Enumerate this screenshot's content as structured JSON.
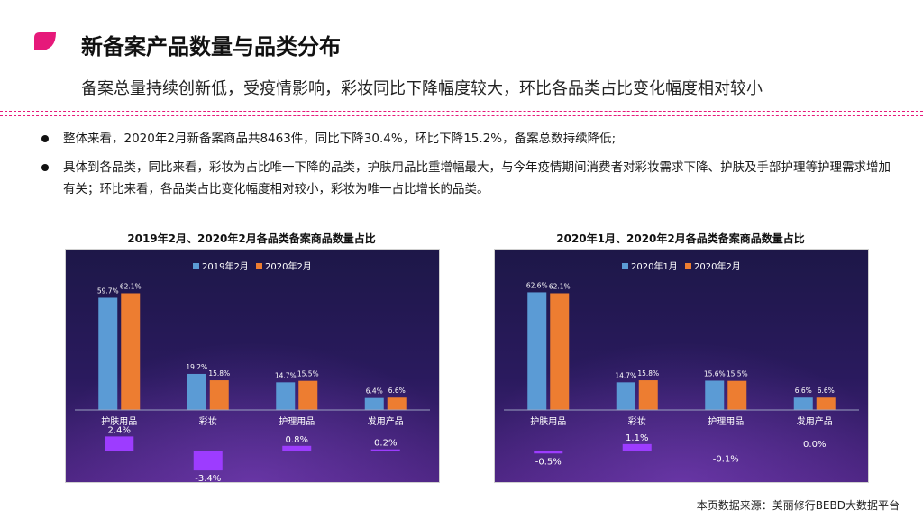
{
  "header": {
    "title": "新备案产品数量与品类分布",
    "subtitle": "备案总量持续创新低，受疫情影响，彩妆同比下降幅度较大，环比各品类占比变化幅度相对较小"
  },
  "bullets": [
    {
      "text": "整体来看，2020年2月新备案商品共8463件，同比下降30.4%，环比下降15.2%，备案总数持续降低;"
    },
    {
      "text": "具体到各品类，同比来看，彩妆为占比唯一下降的品类，护肤用品比重增幅最大，与今年疫情期间消费者对彩妆需求下降、护肤及手部护理等护理需求增加有关；环比来看，各品类占比变化幅度相对较小，彩妆为唯一占比增长的品类。"
    }
  ],
  "colors": {
    "accent": "#e6197a",
    "series_a": "#5b9bd5",
    "series_b": "#ed7d31",
    "change_bar": "#9d3cff"
  },
  "chart_data": [
    {
      "type": "bar",
      "title": "2019年2月、2020年2月各品类备案商品数量占比",
      "categories": [
        "护肤用品",
        "彩妆",
        "护理用品",
        "发用产品"
      ],
      "series": [
        {
          "name": "2019年2月",
          "values": [
            59.7,
            19.2,
            14.7,
            6.4
          ],
          "labels": [
            "59.7%",
            "19.2%",
            "14.7%",
            "6.4%"
          ]
        },
        {
          "name": "2020年2月",
          "values": [
            62.1,
            15.8,
            15.5,
            6.6
          ],
          "labels": [
            "62.1%",
            "15.8%",
            "15.5%",
            "6.6%"
          ]
        }
      ],
      "change": {
        "values": [
          2.4,
          -3.4,
          0.8,
          0.2
        ],
        "labels": [
          "2.4%",
          "-3.4%",
          "0.8%",
          "0.2%"
        ]
      },
      "ylim": [
        0,
        70
      ],
      "legend": "top-center"
    },
    {
      "type": "bar",
      "title": "2020年1月、2020年2月各品类备案商品数量占比",
      "categories": [
        "护肤用品",
        "彩妆",
        "护理用品",
        "发用产品"
      ],
      "series": [
        {
          "name": "2020年1月",
          "values": [
            62.6,
            14.7,
            15.6,
            6.6
          ],
          "labels": [
            "62.6%",
            "14.7%",
            "15.6%",
            "6.6%"
          ]
        },
        {
          "name": "2020年2月",
          "values": [
            62.1,
            15.8,
            15.5,
            6.6
          ],
          "labels": [
            "62.1%",
            "15.8%",
            "15.5%",
            "6.6%"
          ]
        }
      ],
      "change": {
        "values": [
          -0.5,
          1.1,
          -0.1,
          0.0
        ],
        "labels": [
          "-0.5%",
          "1.1%",
          "-0.1%",
          "0.0%"
        ]
      },
      "ylim": [
        0,
        70
      ],
      "legend": "top-center"
    }
  ],
  "footer": {
    "source": "本页数据来源：美丽修行BEBD大数据平台"
  }
}
